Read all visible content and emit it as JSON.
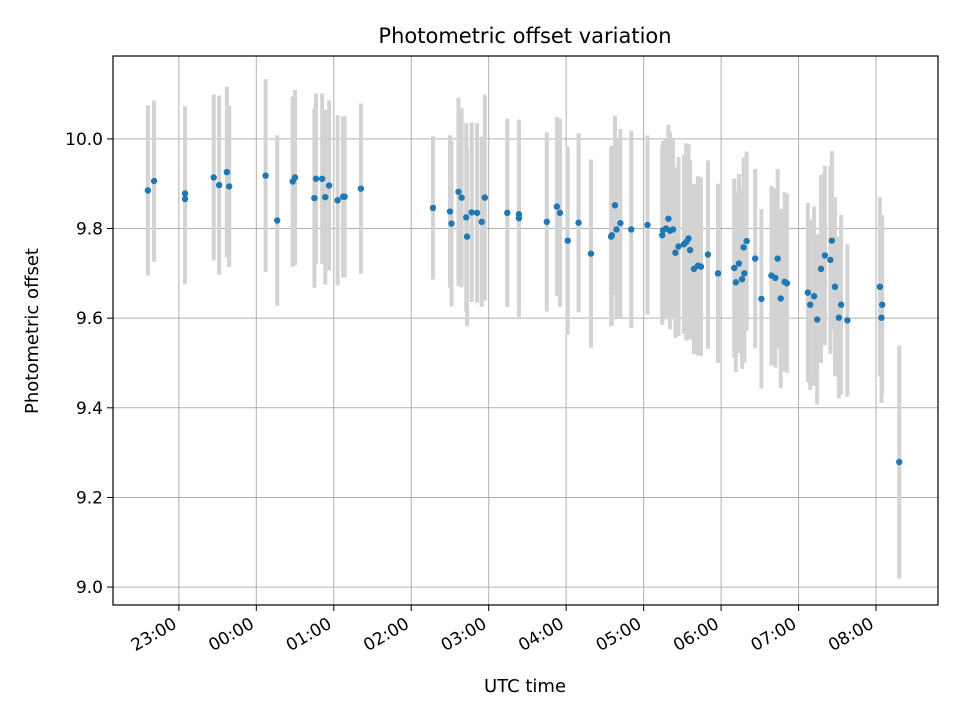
{
  "chart_data": {
    "type": "scatter",
    "title": "Photometric offset variation",
    "xlabel": "UTC time",
    "ylabel": "Photometric offset",
    "xlim": [
      -0.85,
      9.8
    ],
    "ylim": [
      8.96,
      10.185
    ],
    "grid": true,
    "x_ticks": [
      0,
      1,
      2,
      3,
      4,
      5,
      6,
      7,
      8,
      9
    ],
    "x_tick_labels": [
      "23:00",
      "00:00",
      "01:00",
      "02:00",
      "03:00",
      "04:00",
      "05:00",
      "06:00",
      "07:00",
      "08:00"
    ],
    "y_ticks": [
      9.0,
      9.2,
      9.4,
      9.6,
      9.8,
      10.0
    ],
    "y_tick_labels": [
      "9.0",
      "9.2",
      "9.4",
      "9.6",
      "9.8",
      "10.0"
    ],
    "colors": {
      "point": "#1f77b4",
      "errorbar": "#d3d3d3",
      "grid": "#b0b0b0",
      "axes": "#000000"
    },
    "series": [
      {
        "name": "offset",
        "x": [
          -0.4,
          -0.32,
          0.08,
          0.08,
          0.45,
          0.52,
          0.62,
          0.65,
          1.12,
          1.27,
          1.47,
          1.5,
          1.75,
          1.77,
          1.85,
          1.89,
          1.94,
          2.05,
          2.12,
          2.14,
          2.35,
          3.28,
          3.5,
          3.52,
          3.61,
          3.65,
          3.71,
          3.72,
          3.78,
          3.85,
          3.91,
          3.95,
          4.24,
          4.39,
          4.39,
          4.75,
          4.88,
          4.92,
          5.02,
          5.16,
          5.32,
          5.58,
          5.59,
          5.63,
          5.65,
          5.7,
          5.84,
          6.05,
          6.24,
          6.25,
          6.29,
          6.32,
          6.34,
          6.38,
          6.41,
          6.45,
          6.52,
          6.55,
          6.58,
          6.6,
          6.65,
          6.7,
          6.74,
          6.83,
          6.96,
          7.17,
          7.19,
          7.23,
          7.27,
          7.29,
          7.3,
          7.33,
          7.44,
          7.52,
          7.65,
          7.7,
          7.73,
          7.77,
          7.82,
          7.85,
          8.12,
          8.15,
          8.2,
          8.24,
          8.29,
          8.34,
          8.41,
          8.43,
          8.47,
          8.52,
          8.55,
          8.63,
          9.05,
          9.07,
          9.08,
          9.3
        ],
        "y": [
          9.885,
          9.906,
          9.878,
          9.866,
          9.914,
          9.897,
          9.926,
          9.894,
          9.918,
          9.818,
          9.905,
          9.914,
          9.868,
          9.911,
          9.911,
          9.87,
          9.896,
          9.863,
          9.871,
          9.871,
          9.889,
          9.846,
          9.838,
          9.811,
          9.882,
          9.869,
          9.825,
          9.782,
          9.836,
          9.835,
          9.815,
          9.869,
          9.835,
          9.832,
          9.823,
          9.815,
          9.849,
          9.835,
          9.773,
          9.813,
          9.744,
          9.782,
          9.785,
          9.852,
          9.798,
          9.812,
          9.798,
          9.808,
          9.785,
          9.796,
          9.8,
          9.822,
          9.795,
          9.798,
          9.746,
          9.76,
          9.765,
          9.77,
          9.778,
          9.752,
          9.71,
          9.717,
          9.715,
          9.742,
          9.7,
          9.712,
          9.68,
          9.722,
          9.687,
          9.758,
          9.7,
          9.772,
          9.733,
          9.643,
          9.695,
          9.69,
          9.733,
          9.644,
          9.681,
          9.678,
          9.657,
          9.63,
          9.649,
          9.597,
          9.71,
          9.74,
          9.73,
          9.773,
          9.67,
          9.601,
          9.63,
          9.595,
          9.67,
          9.601,
          9.63,
          9.279
        ],
        "yerr": [
          0.19,
          0.18,
          0.195,
          0.19,
          0.185,
          0.2,
          0.19,
          0.18,
          0.215,
          0.19,
          0.19,
          0.195,
          0.2,
          0.19,
          0.19,
          0.195,
          0.19,
          0.19,
          0.18,
          0.18,
          0.19,
          0.16,
          0.17,
          0.185,
          0.21,
          0.2,
          0.21,
          0.2,
          0.2,
          0.2,
          0.19,
          0.23,
          0.21,
          0.2,
          0.22,
          0.2,
          0.2,
          0.21,
          0.21,
          0.2,
          0.21,
          0.2,
          0.2,
          0.2,
          0.2,
          0.21,
          0.22,
          0.2,
          0.2,
          0.2,
          0.2,
          0.21,
          0.22,
          0.2,
          0.19,
          0.2,
          0.2,
          0.22,
          0.21,
          0.2,
          0.19,
          0.2,
          0.2,
          0.21,
          0.2,
          0.2,
          0.2,
          0.2,
          0.2,
          0.2,
          0.2,
          0.2,
          0.2,
          0.2,
          0.2,
          0.2,
          0.2,
          0.2,
          0.2,
          0.2,
          0.2,
          0.19,
          0.2,
          0.19,
          0.21,
          0.2,
          0.21,
          0.2,
          0.2,
          0.18,
          0.2,
          0.17,
          0.2,
          0.19,
          0.2,
          0.26
        ]
      }
    ]
  }
}
